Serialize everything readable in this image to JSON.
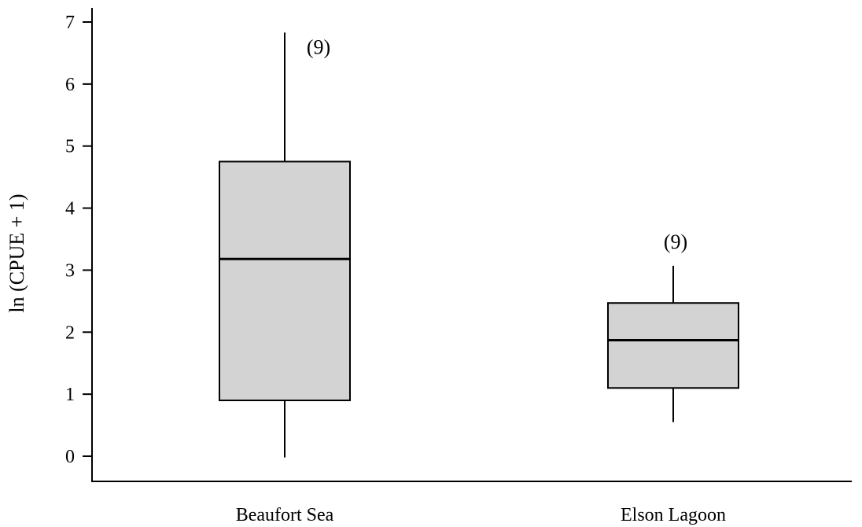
{
  "chart_data": {
    "type": "box",
    "ylabel": "ln (CPUE + 1)",
    "xlabel": "",
    "ylim": [
      -0.35,
      7.3
    ],
    "yticks": [
      0,
      1,
      2,
      3,
      4,
      5,
      6,
      7
    ],
    "grid": false,
    "categories": [
      "Beaufort Sea",
      "Elson Lagoon"
    ],
    "boxes": [
      {
        "category": "Beaufort Sea",
        "min": -0.02,
        "q1": 0.9,
        "median": 3.18,
        "q3": 4.75,
        "max": 6.83,
        "n_label": "(9)"
      },
      {
        "category": "Elson Lagoon",
        "min": 0.55,
        "q1": 1.1,
        "median": 1.87,
        "q3": 2.47,
        "max": 3.07,
        "n_label": "(9)"
      }
    ],
    "box_fill": "#d3d3d3"
  }
}
